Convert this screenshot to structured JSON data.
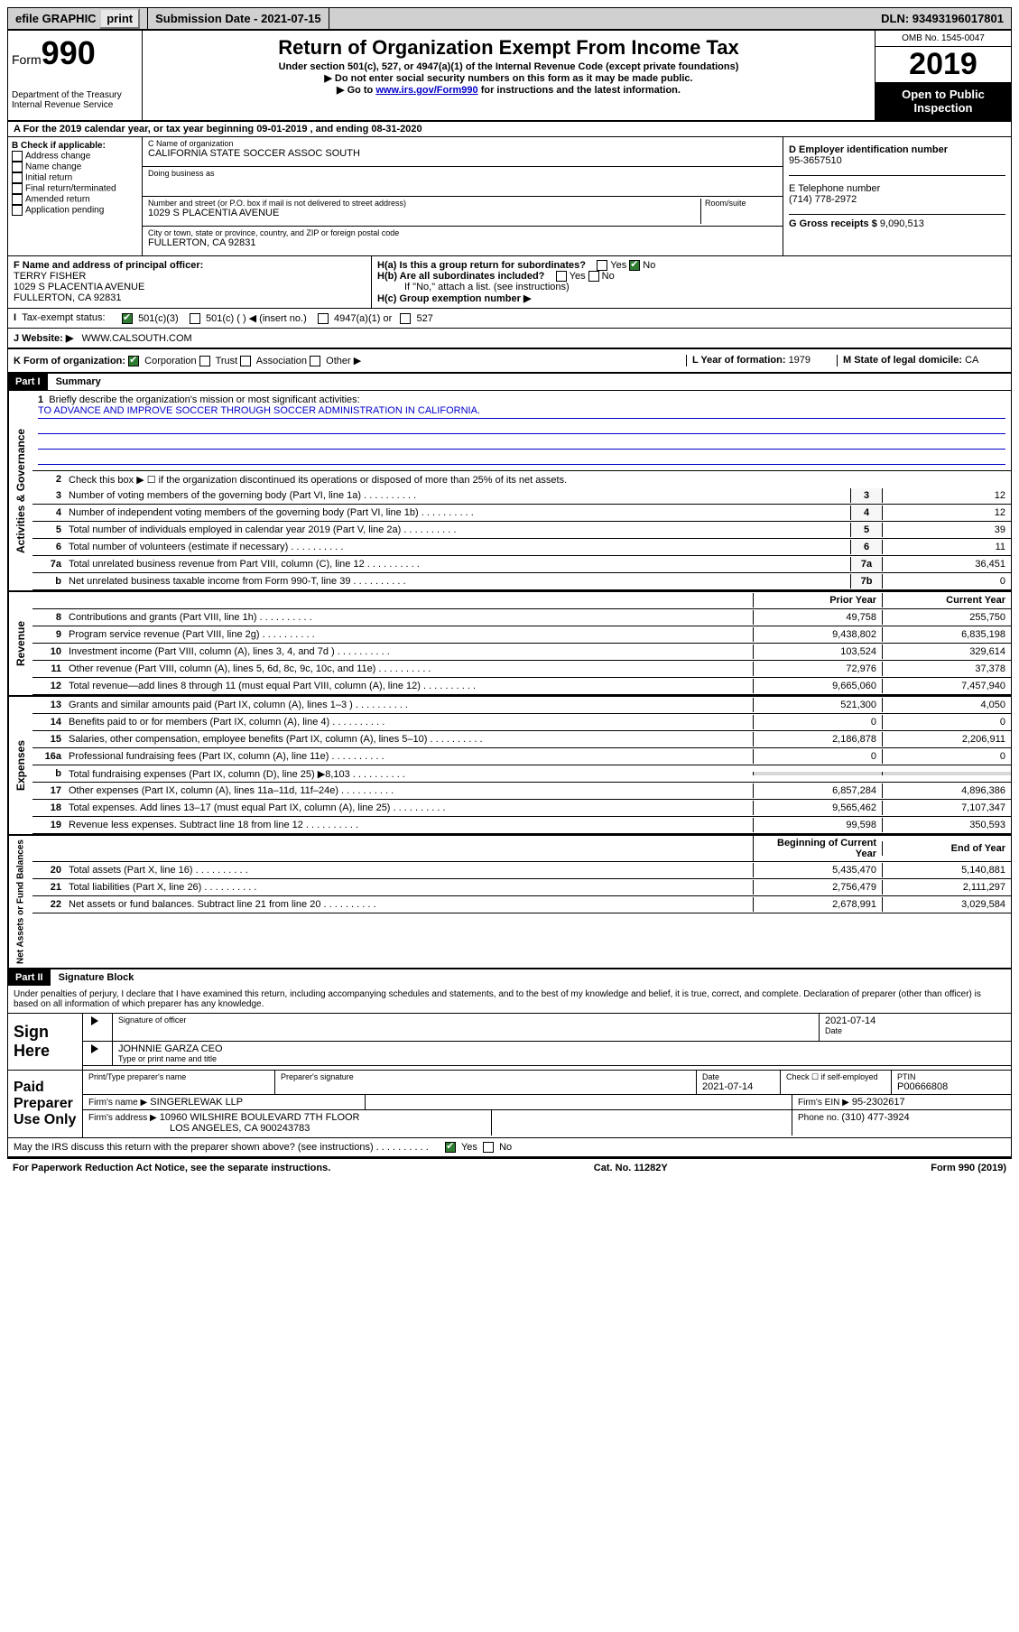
{
  "topbar": {
    "efile": "efile GRAPHIC",
    "print": "print",
    "sub_label": "Submission Date - ",
    "sub_date": "2021-07-15",
    "dln": "DLN: 93493196017801"
  },
  "header": {
    "form_label": "Form",
    "form_num": "990",
    "dept": "Department of the Treasury\nInternal Revenue Service",
    "title": "Return of Organization Exempt From Income Tax",
    "sub": "Under section 501(c), 527, or 4947(a)(1) of the Internal Revenue Code (except private foundations)",
    "note1": "▶ Do not enter social security numbers on this form as it may be made public.",
    "note2_pre": "▶ Go to ",
    "note2_link": "www.irs.gov/Form990",
    "note2_post": " for instructions and the latest information.",
    "omb": "OMB No. 1545-0047",
    "year": "2019",
    "open": "Open to Public Inspection"
  },
  "row_a": "A For the 2019 calendar year, or tax year beginning 09-01-2019   , and ending 08-31-2020",
  "check_b": {
    "title": "B Check if applicable:",
    "items": [
      "Address change",
      "Name change",
      "Initial return",
      "Final return/terminated",
      "Amended return",
      "Application pending"
    ]
  },
  "c_box": {
    "name_lbl": "C Name of organization",
    "name": "CALIFORNIA STATE SOCCER ASSOC SOUTH",
    "dba_lbl": "Doing business as",
    "dba": "",
    "street_lbl": "Number and street (or P.O. box if mail is not delivered to street address)",
    "room_lbl": "Room/suite",
    "street": "1029 S PLACENTIA AVENUE",
    "city_lbl": "City or town, state or province, country, and ZIP or foreign postal code",
    "city": "FULLERTON, CA  92831"
  },
  "d_box": {
    "ein_lbl": "D Employer identification number",
    "ein": "95-3657510",
    "tel_lbl": "E Telephone number",
    "tel": "(714) 778-2972",
    "gross_lbl": "G Gross receipts $ ",
    "gross": "9,090,513"
  },
  "f_box": {
    "lbl": "F  Name and address of principal officer:",
    "name": "TERRY FISHER",
    "addr1": "1029 S PLACENTIA AVENUE",
    "addr2": "FULLERTON, CA  92831"
  },
  "h_box": {
    "ha": "H(a)  Is this a group return for subordinates?",
    "hb": "H(b)  Are all subordinates included?",
    "hb_note": "If \"No,\" attach a list. (see instructions)",
    "hc": "H(c)  Group exemption number ▶",
    "yes": "Yes",
    "no": "No"
  },
  "tax_status": {
    "label": "Tax-exempt status:",
    "c3": "501(c)(3)",
    "c": "501(c) (  ) ◀ (insert no.)",
    "a4947": "4947(a)(1) or",
    "s527": "527"
  },
  "website": {
    "label": "J  Website: ▶",
    "val": "WWW.CALSOUTH.COM"
  },
  "k_row": {
    "label": "K Form of organization:",
    "corp": "Corporation",
    "trust": "Trust",
    "assoc": "Association",
    "other": "Other ▶",
    "l_label": "L Year of formation: ",
    "l_val": "1979",
    "m_label": "M State of legal domicile: ",
    "m_val": "CA"
  },
  "part1": {
    "header": "Part I",
    "title": "Summary",
    "q1": "Briefly describe the organization's mission or most significant activities:",
    "mission": "TO ADVANCE AND IMPROVE SOCCER THROUGH SOCCER ADMINISTRATION IN CALIFORNIA.",
    "q2": "Check this box ▶ ☐  if the organization discontinued its operations or disposed of more than 25% of its net assets.",
    "lines_gov": [
      {
        "n": "3",
        "d": "Number of voting members of the governing body (Part VI, line 1a)",
        "c": "3",
        "v": "12"
      },
      {
        "n": "4",
        "d": "Number of independent voting members of the governing body (Part VI, line 1b)",
        "c": "4",
        "v": "12"
      },
      {
        "n": "5",
        "d": "Total number of individuals employed in calendar year 2019 (Part V, line 2a)",
        "c": "5",
        "v": "39"
      },
      {
        "n": "6",
        "d": "Total number of volunteers (estimate if necessary)",
        "c": "6",
        "v": "11"
      },
      {
        "n": "7a",
        "d": "Total unrelated business revenue from Part VIII, column (C), line 12",
        "c": "7a",
        "v": "36,451"
      },
      {
        "n": "b",
        "d": "Net unrelated business taxable income from Form 990-T, line 39",
        "c": "7b",
        "v": "0"
      }
    ],
    "prior_label": "Prior Year",
    "current_label": "Current Year",
    "lines_rev": [
      {
        "n": "8",
        "d": "Contributions and grants (Part VIII, line 1h)",
        "p": "49,758",
        "c": "255,750"
      },
      {
        "n": "9",
        "d": "Program service revenue (Part VIII, line 2g)",
        "p": "9,438,802",
        "c": "6,835,198"
      },
      {
        "n": "10",
        "d": "Investment income (Part VIII, column (A), lines 3, 4, and 7d )",
        "p": "103,524",
        "c": "329,614"
      },
      {
        "n": "11",
        "d": "Other revenue (Part VIII, column (A), lines 5, 6d, 8c, 9c, 10c, and 11e)",
        "p": "72,976",
        "c": "37,378"
      },
      {
        "n": "12",
        "d": "Total revenue—add lines 8 through 11 (must equal Part VIII, column (A), line 12)",
        "p": "9,665,060",
        "c": "7,457,940"
      }
    ],
    "lines_exp": [
      {
        "n": "13",
        "d": "Grants and similar amounts paid (Part IX, column (A), lines 1–3 )",
        "p": "521,300",
        "c": "4,050"
      },
      {
        "n": "14",
        "d": "Benefits paid to or for members (Part IX, column (A), line 4)",
        "p": "0",
        "c": "0"
      },
      {
        "n": "15",
        "d": "Salaries, other compensation, employee benefits (Part IX, column (A), lines 5–10)",
        "p": "2,186,878",
        "c": "2,206,911"
      },
      {
        "n": "16a",
        "d": "Professional fundraising fees (Part IX, column (A), line 11e)",
        "p": "0",
        "c": "0"
      },
      {
        "n": "b",
        "d": "Total fundraising expenses (Part IX, column (D), line 25) ▶8,103",
        "p": "",
        "c": "",
        "shade": true
      },
      {
        "n": "17",
        "d": "Other expenses (Part IX, column (A), lines 11a–11d, 11f–24e)",
        "p": "6,857,284",
        "c": "4,896,386"
      },
      {
        "n": "18",
        "d": "Total expenses. Add lines 13–17 (must equal Part IX, column (A), line 25)",
        "p": "9,565,462",
        "c": "7,107,347"
      },
      {
        "n": "19",
        "d": "Revenue less expenses. Subtract line 18 from line 12",
        "p": "99,598",
        "c": "350,593"
      }
    ],
    "begin_label": "Beginning of Current Year",
    "end_label": "End of Year",
    "lines_bal": [
      {
        "n": "20",
        "d": "Total assets (Part X, line 16)",
        "p": "5,435,470",
        "c": "5,140,881"
      },
      {
        "n": "21",
        "d": "Total liabilities (Part X, line 26)",
        "p": "2,756,479",
        "c": "2,111,297"
      },
      {
        "n": "22",
        "d": "Net assets or fund balances. Subtract line 21 from line 20",
        "p": "2,678,991",
        "c": "3,029,584"
      }
    ],
    "vlabels": {
      "gov": "Activities & Governance",
      "rev": "Revenue",
      "exp": "Expenses",
      "bal": "Net Assets or Fund Balances"
    }
  },
  "part2": {
    "header": "Part II",
    "title": "Signature Block",
    "text": "Under penalties of perjury, I declare that I have examined this return, including accompanying schedules and statements, and to the best of my knowledge and belief, it is true, correct, and complete. Declaration of preparer (other than officer) is based on all information of which preparer has any knowledge.",
    "sign_here": "Sign Here",
    "sig_officer": "Signature of officer",
    "date": "Date",
    "sig_date": "2021-07-14",
    "officer_name": "JOHNNIE GARZA CEO",
    "type_name": "Type or print name and title",
    "paid": "Paid Preparer Use Only",
    "prep_name_lbl": "Print/Type preparer's name",
    "prep_sig_lbl": "Preparer's signature",
    "prep_date": "2021-07-14",
    "check_self": "Check ☐ if self-employed",
    "ptin_lbl": "PTIN",
    "ptin": "P00666808",
    "firm_name_lbl": "Firm's name   ▶",
    "firm_name": "SINGERLEWAK LLP",
    "firm_ein_lbl": "Firm's EIN ▶",
    "firm_ein": "95-2302617",
    "firm_addr_lbl": "Firm's address ▶",
    "firm_addr1": "10960 WILSHIRE BOULEVARD 7TH FLOOR",
    "firm_addr2": "LOS ANGELES, CA  900243783",
    "phone_lbl": "Phone no. ",
    "phone": "(310) 477-3924",
    "irs_discuss": "May the IRS discuss this return with the preparer shown above? (see instructions)",
    "yes": "Yes",
    "no": "No"
  },
  "footer": {
    "left": "For Paperwork Reduction Act Notice, see the separate instructions.",
    "mid": "Cat. No. 11282Y",
    "right": "Form 990 (2019)"
  }
}
